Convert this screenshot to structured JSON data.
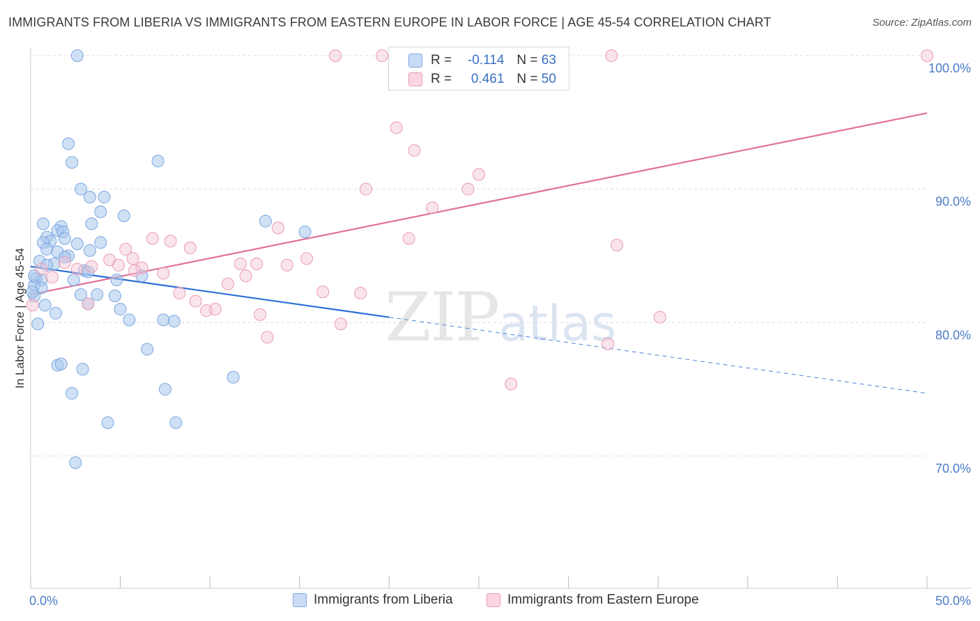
{
  "title": "IMMIGRANTS FROM LIBERIA VS IMMIGRANTS FROM EASTERN EUROPE IN LABOR FORCE | AGE 45-54 CORRELATION CHART",
  "source": "Source: ZipAtlas.com",
  "watermark": {
    "zip": "ZIP",
    "atlas": "atlas"
  },
  "stats": [
    {
      "r_label": "R =",
      "r_value": "-0.114",
      "n_label": "N =",
      "n_value": "63",
      "color": "#aac8ef"
    },
    {
      "r_label": "R =",
      "r_value": "0.461",
      "n_label": "N =",
      "n_value": "50",
      "color": "#f5b8cb"
    }
  ],
  "legend": [
    {
      "label": "Immigrants from Liberia",
      "color": "#aac8ef",
      "stroke": "#7aa6e0"
    },
    {
      "label": "Immigrants from Eastern Europe",
      "color": "#f5c3d2",
      "stroke": "#e99ab4"
    }
  ],
  "chart_data": {
    "type": "scatter",
    "title": "IMMIGRANTS FROM LIBERIA VS IMMIGRANTS FROM EASTERN EUROPE IN LABOR FORCE | AGE 45-54 CORRELATION CHART",
    "xlabel": "",
    "ylabel": "In Labor Force | Age 45-54",
    "xlim": [
      0,
      50
    ],
    "ylim": [
      60.5,
      100.5
    ],
    "x_ticks": [
      0,
      50
    ],
    "x_tick_labels": [
      "0.0%",
      "50.0%"
    ],
    "y_ticks": [
      70,
      80,
      90,
      100
    ],
    "y_tick_labels": [
      "70.0%",
      "80.0%",
      "90.0%",
      "100.0%"
    ],
    "grid": true,
    "series": [
      {
        "name": "Immigrants from Liberia",
        "color": "#7aa6e0",
        "points": [
          [
            2.6,
            100.0
          ],
          [
            2.1,
            93.4
          ],
          [
            2.3,
            92.0
          ],
          [
            7.1,
            92.1
          ],
          [
            2.8,
            90.0
          ],
          [
            3.3,
            89.4
          ],
          [
            4.1,
            89.4
          ],
          [
            3.9,
            88.3
          ],
          [
            5.2,
            88.0
          ],
          [
            0.7,
            87.4
          ],
          [
            1.7,
            87.2
          ],
          [
            3.4,
            87.4
          ],
          [
            13.1,
            87.6
          ],
          [
            1.5,
            86.9
          ],
          [
            1.8,
            86.8
          ],
          [
            0.9,
            86.4
          ],
          [
            1.1,
            86.1
          ],
          [
            0.7,
            86.0
          ],
          [
            1.9,
            86.3
          ],
          [
            2.6,
            85.9
          ],
          [
            3.9,
            86.0
          ],
          [
            0.9,
            85.5
          ],
          [
            3.3,
            85.4
          ],
          [
            1.5,
            85.3
          ],
          [
            15.3,
            86.8
          ],
          [
            2.1,
            85.0
          ],
          [
            1.9,
            84.9
          ],
          [
            0.5,
            84.6
          ],
          [
            1.3,
            84.4
          ],
          [
            0.9,
            84.3
          ],
          [
            3.0,
            83.9
          ],
          [
            3.2,
            83.8
          ],
          [
            6.2,
            83.5
          ],
          [
            0.3,
            83.3
          ],
          [
            0.6,
            83.2
          ],
          [
            2.4,
            83.2
          ],
          [
            4.8,
            83.2
          ],
          [
            0.2,
            82.8
          ],
          [
            0.6,
            82.6
          ],
          [
            0.2,
            82.0
          ],
          [
            2.8,
            82.1
          ],
          [
            3.7,
            82.1
          ],
          [
            4.7,
            82.0
          ],
          [
            0.8,
            81.3
          ],
          [
            1.4,
            80.7
          ],
          [
            3.2,
            81.4
          ],
          [
            5.0,
            81.0
          ],
          [
            5.5,
            80.2
          ],
          [
            7.4,
            80.2
          ],
          [
            8.0,
            80.1
          ],
          [
            0.4,
            79.9
          ],
          [
            6.5,
            78.0
          ],
          [
            1.5,
            76.8
          ],
          [
            1.7,
            76.9
          ],
          [
            2.9,
            76.5
          ],
          [
            11.3,
            75.9
          ],
          [
            2.3,
            74.7
          ],
          [
            7.5,
            75.0
          ],
          [
            4.3,
            72.5
          ],
          [
            8.1,
            72.5
          ],
          [
            2.5,
            69.5
          ],
          [
            0.1,
            82.3
          ],
          [
            0.2,
            83.5
          ]
        ]
      },
      {
        "name": "Immigrants from Eastern Europe",
        "color": "#e99ab4",
        "points": [
          [
            17.0,
            100.0
          ],
          [
            19.6,
            100.0
          ],
          [
            26.7,
            100.0
          ],
          [
            29.6,
            100.0
          ],
          [
            32.4,
            100.0
          ],
          [
            50.0,
            100.0
          ],
          [
            20.4,
            94.6
          ],
          [
            21.4,
            92.9
          ],
          [
            25.0,
            91.1
          ],
          [
            18.7,
            90.0
          ],
          [
            24.4,
            90.0
          ],
          [
            22.4,
            88.6
          ],
          [
            13.8,
            87.1
          ],
          [
            21.1,
            86.3
          ],
          [
            6.8,
            86.3
          ],
          [
            7.8,
            86.1
          ],
          [
            8.9,
            85.6
          ],
          [
            32.7,
            85.8
          ],
          [
            5.3,
            85.5
          ],
          [
            15.4,
            84.8
          ],
          [
            3.4,
            84.2
          ],
          [
            4.4,
            84.7
          ],
          [
            5.7,
            84.8
          ],
          [
            4.9,
            84.3
          ],
          [
            11.7,
            84.4
          ],
          [
            12.6,
            84.4
          ],
          [
            14.3,
            84.3
          ],
          [
            6.2,
            84.1
          ],
          [
            5.8,
            83.9
          ],
          [
            7.4,
            83.7
          ],
          [
            1.9,
            84.5
          ],
          [
            2.6,
            84.0
          ],
          [
            1.2,
            83.4
          ],
          [
            0.6,
            84.0
          ],
          [
            12.0,
            83.5
          ],
          [
            11.0,
            82.9
          ],
          [
            16.3,
            82.3
          ],
          [
            18.4,
            82.2
          ],
          [
            8.3,
            82.2
          ],
          [
            9.2,
            81.6
          ],
          [
            9.8,
            80.9
          ],
          [
            10.3,
            81.0
          ],
          [
            3.2,
            81.4
          ],
          [
            12.8,
            80.6
          ],
          [
            17.3,
            79.9
          ],
          [
            35.1,
            80.4
          ],
          [
            13.2,
            78.9
          ],
          [
            32.2,
            78.4
          ],
          [
            26.8,
            75.4
          ],
          [
            0.1,
            81.3
          ]
        ]
      }
    ],
    "trendlines": [
      {
        "series": "Immigrants from Liberia",
        "x": [
          0,
          50
        ],
        "y": [
          84.2,
          74.7
        ],
        "solid_until_x": 20
      },
      {
        "series": "Immigrants from Eastern Europe",
        "x": [
          0,
          50
        ],
        "y": [
          82.1,
          95.7
        ]
      }
    ]
  }
}
